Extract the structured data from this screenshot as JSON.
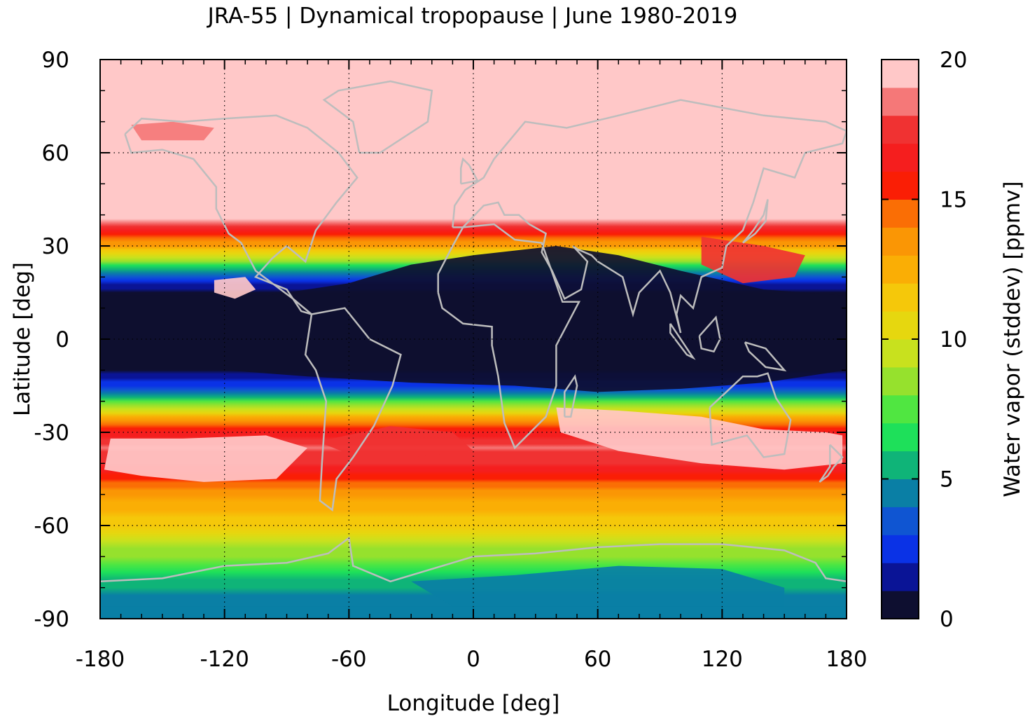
{
  "chart_data": {
    "type": "heatmap",
    "title": "JRA-55 | Dynamical tropopause | June 1980-2019",
    "xlabel": "Longitude [deg]",
    "ylabel": "Latitude [deg]",
    "xlim": [
      -180,
      180
    ],
    "ylim": [
      -90,
      90
    ],
    "xticks": [
      -180,
      -120,
      -60,
      0,
      60,
      120,
      180
    ],
    "yticks": [
      90,
      60,
      30,
      0,
      -30,
      -60,
      -90
    ],
    "x_tick_labels": [
      "-180",
      "-120",
      "-60",
      "0",
      "60",
      "120",
      "180"
    ],
    "y_tick_labels": [
      "90",
      "60",
      "30",
      "0",
      "-30",
      "-60",
      "-90"
    ],
    "grid": true,
    "colorbar": {
      "label": "Water vapor (stddev) [ppmv]",
      "range": [
        0,
        20
      ],
      "ticks": [
        0,
        5,
        10,
        15,
        20
      ],
      "tick_labels": [
        "0",
        "5",
        "10",
        "15",
        "20"
      ],
      "colors": [
        "#0e0f30",
        "#0a1496",
        "#0a32e6",
        "#0f55d2",
        "#0a7fa5",
        "#0fb478",
        "#1ee05a",
        "#50e641",
        "#96e12d",
        "#c8e11e",
        "#e6d70f",
        "#f5c80a",
        "#faae05",
        "#fa9605",
        "#fa6e05",
        "#fa1e05",
        "#f51e1e",
        "#f03232",
        "#f57878",
        "#ffc8c8"
      ]
    },
    "zonal_mean_profile": [
      {
        "lat": 90,
        "value": 20
      },
      {
        "lat": 60,
        "value": 20
      },
      {
        "lat": 40,
        "value": 20
      },
      {
        "lat": 35,
        "value": 16
      },
      {
        "lat": 30,
        "value": 13
      },
      {
        "lat": 25,
        "value": 8
      },
      {
        "lat": 20,
        "value": 3
      },
      {
        "lat": 15,
        "value": 0.5
      },
      {
        "lat": 0,
        "value": 0.3
      },
      {
        "lat": -10,
        "value": 0.5
      },
      {
        "lat": -15,
        "value": 2.5
      },
      {
        "lat": -20,
        "value": 7
      },
      {
        "lat": -25,
        "value": 12
      },
      {
        "lat": -30,
        "value": 16
      },
      {
        "lat": -35,
        "value": 18
      },
      {
        "lat": -40,
        "value": 17
      },
      {
        "lat": -45,
        "value": 15
      },
      {
        "lat": -50,
        "value": 13
      },
      {
        "lat": -60,
        "value": 11
      },
      {
        "lat": -70,
        "value": 8
      },
      {
        "lat": -80,
        "value": 5
      },
      {
        "lat": -90,
        "value": 4
      }
    ]
  }
}
